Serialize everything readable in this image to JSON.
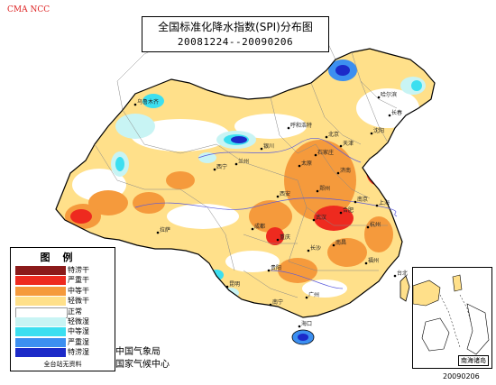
{
  "agency_mark": "CMA NCC",
  "title": {
    "line1": "全国标准化降水指数(SPI)分布图",
    "line2": "20081224--20090206"
  },
  "legend": {
    "title": "图例",
    "items": [
      {
        "label": "特涝干",
        "color": "#8b1a1a"
      },
      {
        "label": "严重干",
        "color": "#ee2a1f"
      },
      {
        "label": "中等干",
        "color": "#f59a3c"
      },
      {
        "label": "轻微干",
        "color": "#ffe08a"
      },
      {
        "label": "正常",
        "color": "#ffffff"
      },
      {
        "label": "轻微湿",
        "color": "#c8f4f4"
      },
      {
        "label": "中等湿",
        "color": "#3cdff0"
      },
      {
        "label": "严重湿",
        "color": "#3c8ff0"
      },
      {
        "label": "特涝湿",
        "color": "#1c2ac8"
      }
    ],
    "footer": "全台站无资料"
  },
  "credits": [
    "中国气象局",
    "国家气候中心"
  ],
  "inset_label": "南海诸岛",
  "date_stamp": "20090206",
  "colors": {
    "dry_light": "#ffe08a",
    "dry_moderate": "#f59a3c",
    "dry_severe": "#ee2a1f",
    "wet_light": "#c8f4f4",
    "wet_moderate": "#3cdff0",
    "wet_severe": "#3c8ff0",
    "wet_extreme": "#1c2ac8",
    "sea": "#ffffff",
    "border": "#000000",
    "river": "#5a5adc"
  },
  "cities": [
    "乌鲁木齐",
    "哈尔滨",
    "长春",
    "沈阳",
    "呼和浩特",
    "北京",
    "天津",
    "石家庄",
    "太原",
    "银川",
    "兰州",
    "西宁",
    "济南",
    "郑州",
    "西安",
    "拉萨",
    "成都",
    "重庆",
    "武汉",
    "合肥",
    "南京",
    "上海",
    "杭州",
    "长沙",
    "南昌",
    "福州",
    "贵阳",
    "昆明",
    "南宁",
    "广州",
    "台北",
    "海口"
  ]
}
